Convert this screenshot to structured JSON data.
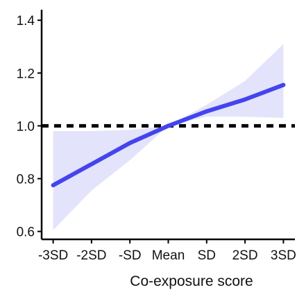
{
  "chart_data": {
    "type": "line",
    "title": "",
    "xlabel": "Co-exposure score",
    "ylabel": "",
    "x_categories": [
      "-3SD",
      "-2SD",
      "-SD",
      "Mean",
      "SD",
      "2SD",
      "3SD"
    ],
    "x_values": [
      -3,
      -2,
      -1,
      0,
      1,
      2,
      3
    ],
    "xlim": [
      -3.3,
      3.3
    ],
    "ylim": [
      0.57,
      1.44
    ],
    "y_ticks": [
      0.6,
      0.8,
      1.0,
      1.2,
      1.4
    ],
    "y_tick_labels": [
      "0.6",
      "0.8",
      "1.0",
      "1.2",
      "1.4"
    ],
    "grid": false,
    "legend": "none",
    "reference_line": {
      "y": 1.0,
      "style": "dotted"
    },
    "series": [
      {
        "x": [
          -3,
          -2,
          -1,
          0,
          1,
          2,
          3
        ],
        "y": [
          0.775,
          0.855,
          0.935,
          1.0,
          1.055,
          1.1,
          1.155
        ],
        "ci_lower": [
          0.605,
          0.755,
          0.87,
          1.0,
          1.035,
          1.035,
          1.03
        ],
        "ci_upper": [
          0.98,
          0.98,
          0.985,
          1.0,
          1.08,
          1.17,
          1.31
        ]
      }
    ],
    "colors": {
      "line": "#4444ee",
      "band": "#e3e3fb",
      "reference": "#000000",
      "axis": "#000000"
    }
  }
}
